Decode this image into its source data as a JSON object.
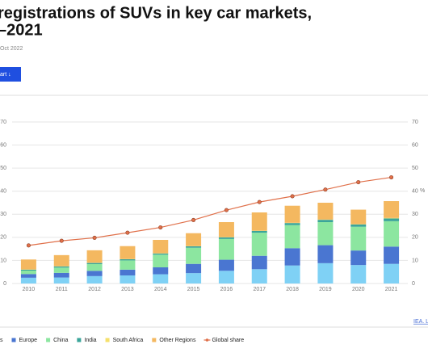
{
  "header": {
    "title_line1": "registrations of SUVs in key car markets,",
    "title_line2": "–2021",
    "date": "Oct 2022",
    "button": "art ↓"
  },
  "chart_data": {
    "type": "bar",
    "stacked": true,
    "categories": [
      "2010",
      "2011",
      "2012",
      "2013",
      "2014",
      "2015",
      "2016",
      "2017",
      "2018",
      "2019",
      "2020",
      "2021"
    ],
    "series": [
      {
        "name": "s",
        "color": "#7fd1f5",
        "values": [
          2.5,
          2.6,
          3.2,
          3.5,
          4.0,
          4.5,
          5.5,
          6.2,
          7.8,
          8.8,
          8.0,
          8.5
        ]
      },
      {
        "name": "Europe",
        "color": "#4a76d1",
        "values": [
          1.6,
          2.0,
          2.3,
          2.5,
          3.0,
          4.0,
          4.8,
          5.8,
          7.5,
          7.8,
          6.3,
          7.5
        ]
      },
      {
        "name": "China",
        "color": "#8ce6a0",
        "values": [
          1.5,
          2.3,
          2.9,
          4.0,
          5.5,
          7.0,
          9.0,
          10.0,
          10.0,
          10.0,
          10.3,
          11.0
        ]
      },
      {
        "name": "India",
        "color": "#3aa59a",
        "values": [
          0.4,
          0.5,
          0.5,
          0.5,
          0.5,
          0.6,
          0.7,
          0.8,
          0.9,
          1.0,
          1.0,
          1.2
        ]
      },
      {
        "name": "South Africa",
        "color": "#f5e06b",
        "values": [
          0.1,
          0.1,
          0.1,
          0.1,
          0.1,
          0.1,
          0.1,
          0.1,
          0.1,
          0.1,
          0.1,
          0.2
        ]
      },
      {
        "name": "Other Regions",
        "color": "#f4b860",
        "values": [
          4.3,
          4.8,
          5.4,
          5.6,
          5.8,
          5.6,
          6.5,
          7.9,
          7.4,
          7.3,
          6.3,
          7.3
        ]
      },
      {
        "name": "Global share",
        "type": "line",
        "axis": "y2",
        "color": "#e0704a",
        "values": [
          16.5,
          18.5,
          19.8,
          22.0,
          24.3,
          27.5,
          31.8,
          35.3,
          37.8,
          40.7,
          43.9,
          46.0
        ]
      }
    ],
    "ylim": [
      0,
      70
    ],
    "yticks": [
      0,
      10,
      20,
      30,
      40,
      50,
      60,
      70
    ],
    "y2lim": [
      0,
      70
    ],
    "y2ticks": [
      0,
      10,
      20,
      30,
      40,
      50,
      60,
      70
    ],
    "y2label": "%",
    "grid": true,
    "legend": "bottom",
    "source": "IEA. Lic"
  }
}
